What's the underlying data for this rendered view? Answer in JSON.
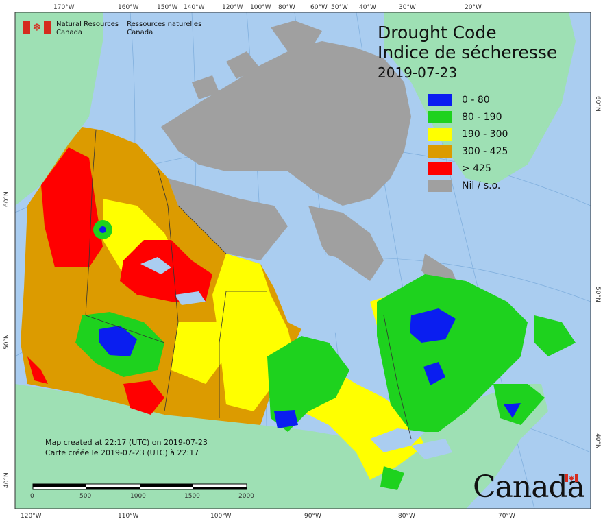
{
  "header": {
    "department_en": [
      "Natural Resources",
      "Canada"
    ],
    "department_fr": [
      "Ressources naturelles",
      "Canada"
    ]
  },
  "title": {
    "en": "Drought Code",
    "fr": "Indice de sécheresse",
    "date": "2019-07-23"
  },
  "legend": [
    {
      "label": "0 - 80",
      "color": "#0a1ef0"
    },
    {
      "label": "80 - 190",
      "color": "#1ed21e"
    },
    {
      "label": "190 - 300",
      "color": "#ffff00"
    },
    {
      "label": "300 - 425",
      "color": "#dc9b00"
    },
    {
      "label": "> 425",
      "color": "#ff0000"
    },
    {
      "label": "Nil / s.o.",
      "color": "#a0a0a0"
    }
  ],
  "credit": {
    "en": "Map created at 22:17 (UTC) on 2019-07-23",
    "fr": "Carte créée le 2019-07-23 (UTC) à 22:17"
  },
  "scale": {
    "labels": [
      "0",
      "500",
      "1000",
      "1500",
      "2000 km"
    ]
  },
  "graticule": {
    "top": [
      "170°W",
      "160°W",
      "150°W",
      "140°W",
      "120°W",
      "100°W",
      "80°W",
      "60°W",
      "50°W",
      "40°W",
      "30°W",
      "20°W"
    ],
    "bottom": [
      "120°W",
      "110°W",
      "100°W",
      "90°W",
      "80°W",
      "70°W"
    ],
    "left": [
      "60°N",
      "50°N",
      "40°N"
    ],
    "right": [
      "60°N",
      "50°N",
      "40°N"
    ]
  },
  "wordmark": "Canada",
  "colors": {
    "ocean": "#aacdf0",
    "land_foreign": "#9ee0b4",
    "nil": "#a0a0a0"
  }
}
